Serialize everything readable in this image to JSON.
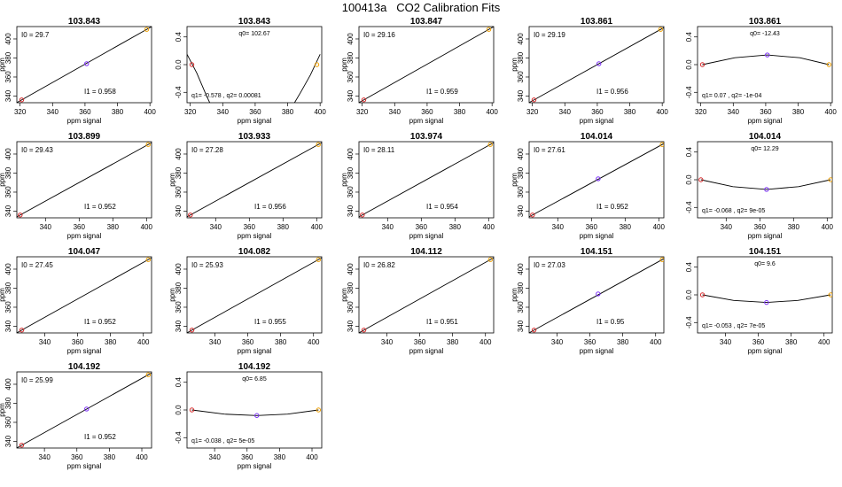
{
  "title": "100413a   CO2 Calibration Fits",
  "axis_labels": {
    "x": "ppm signal",
    "y": "ppm"
  },
  "colors": {
    "low_point": "#d62728",
    "mid_point": "#7b2ff7",
    "high_point": "#f0a000",
    "line": "#000000",
    "frame": "#000000"
  },
  "chart_data": [
    {
      "type": "line",
      "kind": "linear",
      "title": "103.843",
      "xlabel": "ppm signal",
      "ylabel": "ppm",
      "xlim": [
        318,
        401
      ],
      "ylim": [
        333,
        413
      ],
      "xticks": [
        320,
        340,
        360,
        380,
        400
      ],
      "yticks": [
        340,
        360,
        380,
        400
      ],
      "grid": false,
      "points": [
        [
          321,
          336
        ],
        [
          361,
          374
        ],
        [
          398,
          410
        ]
      ],
      "annotation_top": "I0 =  29.7",
      "annotation_bottom": "I1 =  0.958"
    },
    {
      "type": "line",
      "kind": "residual",
      "title": "103.843",
      "xlabel": "ppm signal",
      "ylabel": "",
      "xlim": [
        318,
        401
      ],
      "ylim": [
        -0.55,
        0.55
      ],
      "xticks": [
        320,
        340,
        360,
        380,
        400
      ],
      "yticks": [
        -0.4,
        0.0,
        0.4
      ],
      "grid": false,
      "points": [
        [
          321,
          0.0
        ],
        [
          398,
          0.0
        ]
      ],
      "curve": [
        [
          318,
          0.15
        ],
        [
          324,
          -0.12
        ],
        [
          330,
          -0.45
        ],
        [
          333,
          -0.6
        ],
        [
          383,
          -0.6
        ],
        [
          388,
          -0.4
        ],
        [
          394,
          -0.15
        ],
        [
          400,
          0.15
        ]
      ],
      "annotation_top": "q0=  102.67",
      "annotation_bottom": "q1= -0.578 , q2= 0.00081"
    },
    {
      "type": "line",
      "kind": "linear",
      "title": "103.847",
      "xlabel": "ppm signal",
      "ylabel": "ppm",
      "xlim": [
        318,
        401
      ],
      "ylim": [
        333,
        413
      ],
      "xticks": [
        320,
        340,
        360,
        380,
        400
      ],
      "yticks": [
        340,
        360,
        380,
        400
      ],
      "grid": false,
      "points": [
        [
          321,
          336
        ],
        [
          398,
          410
        ]
      ],
      "annotation_top": "I0 =  29.16",
      "annotation_bottom": "I1 =  0.959"
    },
    {
      "type": "line",
      "kind": "linear",
      "title": "103.861",
      "xlabel": "ppm signal",
      "ylabel": "ppm",
      "xlim": [
        318,
        401
      ],
      "ylim": [
        333,
        413
      ],
      "xticks": [
        320,
        340,
        360,
        380,
        400
      ],
      "yticks": [
        340,
        360,
        380,
        400
      ],
      "grid": false,
      "points": [
        [
          321,
          336
        ],
        [
          361,
          374
        ],
        [
          399,
          410
        ]
      ],
      "annotation_top": "I0 =  29.19",
      "annotation_bottom": "I1 =  0.956"
    },
    {
      "type": "line",
      "kind": "residual",
      "title": "103.861",
      "xlabel": "ppm signal",
      "ylabel": "",
      "xlim": [
        318,
        401
      ],
      "ylim": [
        -0.55,
        0.55
      ],
      "xticks": [
        320,
        340,
        360,
        380,
        400
      ],
      "yticks": [
        -0.4,
        0.0,
        0.4
      ],
      "grid": false,
      "points": [
        [
          321,
          0.0
        ],
        [
          361,
          0.14
        ],
        [
          399,
          0.0
        ]
      ],
      "curve": [
        [
          321,
          0.0
        ],
        [
          341,
          0.1
        ],
        [
          361,
          0.14
        ],
        [
          381,
          0.1
        ],
        [
          399,
          0.0
        ]
      ],
      "annotation_top": "q0=  -12.43",
      "annotation_bottom": "q1= 0.07 , q2= -1e-04"
    },
    {
      "type": "line",
      "kind": "linear",
      "title": "103.899",
      "xlabel": "ppm signal",
      "ylabel": "ppm",
      "xlim": [
        323,
        403
      ],
      "ylim": [
        333,
        413
      ],
      "xticks": [
        340,
        360,
        380,
        400
      ],
      "yticks": [
        340,
        360,
        380,
        400
      ],
      "grid": false,
      "points": [
        [
          325,
          336
        ],
        [
          401,
          410
        ]
      ],
      "annotation_top": "I0 =  29.43",
      "annotation_bottom": "I1 =  0.952"
    },
    {
      "type": "line",
      "kind": "linear",
      "title": "103.933",
      "xlabel": "ppm signal",
      "ylabel": "ppm",
      "xlim": [
        323,
        403
      ],
      "ylim": [
        333,
        413
      ],
      "xticks": [
        340,
        360,
        380,
        400
      ],
      "yticks": [
        340,
        360,
        380,
        400
      ],
      "grid": false,
      "points": [
        [
          325,
          336
        ],
        [
          401,
          410
        ]
      ],
      "annotation_top": "I0 =  27.28",
      "annotation_bottom": "I1 =  0.956"
    },
    {
      "type": "line",
      "kind": "linear",
      "title": "103.974",
      "xlabel": "ppm signal",
      "ylabel": "ppm",
      "xlim": [
        323,
        403
      ],
      "ylim": [
        333,
        413
      ],
      "xticks": [
        340,
        360,
        380,
        400
      ],
      "yticks": [
        340,
        360,
        380,
        400
      ],
      "grid": false,
      "points": [
        [
          325,
          336
        ],
        [
          401,
          410
        ]
      ],
      "annotation_top": "I0 =  28.11",
      "annotation_bottom": "I1 =  0.954"
    },
    {
      "type": "line",
      "kind": "linear",
      "title": "104.014",
      "xlabel": "ppm signal",
      "ylabel": "ppm",
      "xlim": [
        323,
        403
      ],
      "ylim": [
        333,
        413
      ],
      "xticks": [
        340,
        360,
        380,
        400
      ],
      "yticks": [
        340,
        360,
        380,
        400
      ],
      "grid": false,
      "points": [
        [
          325,
          336
        ],
        [
          364,
          374
        ],
        [
          402,
          410
        ]
      ],
      "annotation_top": "I0 =  27.61",
      "annotation_bottom": "I1 =  0.952"
    },
    {
      "type": "line",
      "kind": "residual",
      "title": "104.014",
      "xlabel": "ppm signal",
      "ylabel": "",
      "xlim": [
        323,
        403
      ],
      "ylim": [
        -0.55,
        0.55
      ],
      "xticks": [
        340,
        360,
        380,
        400
      ],
      "yticks": [
        -0.4,
        0.0,
        0.4
      ],
      "grid": false,
      "points": [
        [
          325,
          0.0
        ],
        [
          364,
          -0.14
        ],
        [
          402,
          0.0
        ]
      ],
      "curve": [
        [
          325,
          0.0
        ],
        [
          344,
          -0.1
        ],
        [
          364,
          -0.14
        ],
        [
          383,
          -0.1
        ],
        [
          402,
          0.0
        ]
      ],
      "annotation_top": "q0=  12.29",
      "annotation_bottom": "q1= -0.068 , q2= 9e-05"
    },
    {
      "type": "line",
      "kind": "linear",
      "title": "104.047",
      "xlabel": "ppm signal",
      "ylabel": "ppm",
      "xlim": [
        323,
        405
      ],
      "ylim": [
        333,
        413
      ],
      "xticks": [
        340,
        360,
        380,
        400
      ],
      "yticks": [
        340,
        360,
        380,
        400
      ],
      "grid": false,
      "points": [
        [
          326,
          336
        ],
        [
          403,
          410
        ]
      ],
      "annotation_top": "I0 =  27.45",
      "annotation_bottom": "I1 =  0.952"
    },
    {
      "type": "line",
      "kind": "linear",
      "title": "104.082",
      "xlabel": "ppm signal",
      "ylabel": "ppm",
      "xlim": [
        323,
        405
      ],
      "ylim": [
        333,
        413
      ],
      "xticks": [
        340,
        360,
        380,
        400
      ],
      "yticks": [
        340,
        360,
        380,
        400
      ],
      "grid": false,
      "points": [
        [
          326,
          336
        ],
        [
          403,
          410
        ]
      ],
      "annotation_top": "I0 =  25.93",
      "annotation_bottom": "I1 =  0.955"
    },
    {
      "type": "line",
      "kind": "linear",
      "title": "104.112",
      "xlabel": "ppm signal",
      "ylabel": "ppm",
      "xlim": [
        323,
        405
      ],
      "ylim": [
        333,
        413
      ],
      "xticks": [
        340,
        360,
        380,
        400
      ],
      "yticks": [
        340,
        360,
        380,
        400
      ],
      "grid": false,
      "points": [
        [
          326,
          336
        ],
        [
          403,
          410
        ]
      ],
      "annotation_top": "I0 =  26.82",
      "annotation_bottom": "I1 =  0.951"
    },
    {
      "type": "line",
      "kind": "linear",
      "title": "104.151",
      "xlabel": "ppm signal",
      "ylabel": "ppm",
      "xlim": [
        323,
        405
      ],
      "ylim": [
        333,
        413
      ],
      "xticks": [
        340,
        360,
        380,
        400
      ],
      "yticks": [
        340,
        360,
        380,
        400
      ],
      "grid": false,
      "points": [
        [
          326,
          336
        ],
        [
          365,
          374
        ],
        [
          404,
          410
        ]
      ],
      "annotation_top": "I0 =  27.03",
      "annotation_bottom": "I1 =  0.95"
    },
    {
      "type": "line",
      "kind": "residual",
      "title": "104.151",
      "xlabel": "ppm signal",
      "ylabel": "",
      "xlim": [
        323,
        405
      ],
      "ylim": [
        -0.55,
        0.55
      ],
      "xticks": [
        340,
        360,
        380,
        400
      ],
      "yticks": [
        -0.4,
        0.0,
        0.4
      ],
      "grid": false,
      "points": [
        [
          326,
          0.0
        ],
        [
          365,
          -0.11
        ],
        [
          404,
          0.0
        ]
      ],
      "curve": [
        [
          326,
          0.0
        ],
        [
          345,
          -0.08
        ],
        [
          365,
          -0.11
        ],
        [
          384,
          -0.08
        ],
        [
          404,
          0.0
        ]
      ],
      "annotation_top": "q0=  9.6",
      "annotation_bottom": "q1= -0.053 , q2= 7e-05"
    },
    {
      "type": "line",
      "kind": "linear",
      "title": "104.192",
      "xlabel": "ppm signal",
      "ylabel": "ppm",
      "xlim": [
        323,
        406
      ],
      "ylim": [
        333,
        413
      ],
      "xticks": [
        340,
        360,
        380,
        400
      ],
      "yticks": [
        340,
        360,
        380,
        400
      ],
      "grid": false,
      "points": [
        [
          326,
          336
        ],
        [
          366,
          374
        ],
        [
          404,
          410
        ]
      ],
      "annotation_top": "I0 =  25.99",
      "annotation_bottom": "I1 =  0.952"
    },
    {
      "type": "line",
      "kind": "residual",
      "title": "104.192",
      "xlabel": "ppm signal",
      "ylabel": "",
      "xlim": [
        323,
        406
      ],
      "ylim": [
        -0.55,
        0.55
      ],
      "xticks": [
        340,
        360,
        380,
        400
      ],
      "yticks": [
        -0.4,
        0.0,
        0.4
      ],
      "grid": false,
      "points": [
        [
          326,
          0.0
        ],
        [
          366,
          -0.08
        ],
        [
          404,
          0.0
        ]
      ],
      "curve": [
        [
          326,
          0.0
        ],
        [
          346,
          -0.06
        ],
        [
          366,
          -0.08
        ],
        [
          385,
          -0.06
        ],
        [
          404,
          0.0
        ]
      ],
      "annotation_top": "q0=  6.85",
      "annotation_bottom": "q1= -0.038 , q2= 5e-05"
    }
  ]
}
